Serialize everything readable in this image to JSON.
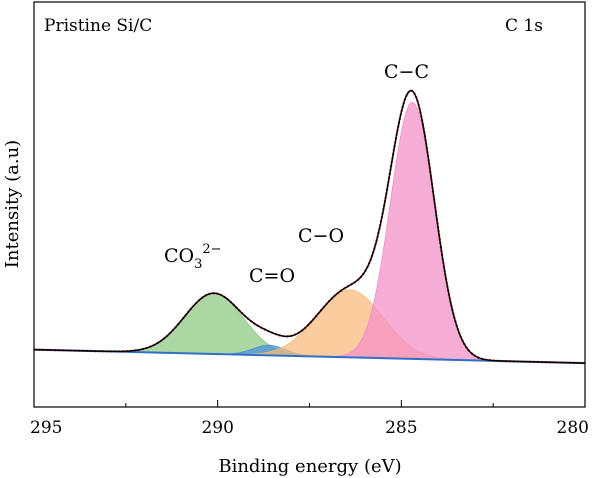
{
  "chart_data": {
    "type": "area",
    "sample_label": "Pristine Si/C",
    "spectrum_label": "C 1s",
    "xlabel": "Binding energy (eV)",
    "ylabel": "Intensity (a.u)",
    "xlim": [
      295,
      280
    ],
    "ylim": [
      -0.15,
      1.05
    ],
    "x_reversed": true,
    "x_ticks": [
      295,
      290,
      285,
      280
    ],
    "x_minor_step": 2.5,
    "grid": false,
    "baseline": {
      "x": [
        295,
        280
      ],
      "y": [
        0.02,
        -0.02
      ]
    },
    "components": [
      {
        "label": "CO",
        "label_sub": "3",
        "label_sup": "2−",
        "center": 290.1,
        "height": 0.18,
        "sigma": 0.8,
        "color": "#8bc87e"
      },
      {
        "label": "C=O",
        "center": 288.6,
        "height": 0.03,
        "sigma": 0.45,
        "color": "#4a90d9"
      },
      {
        "label": "C−O",
        "center": 286.4,
        "height": 0.2,
        "sigma": 0.9,
        "color": "#f8b878"
      },
      {
        "label": "C−C",
        "center": 284.7,
        "height": 0.76,
        "sigma": 0.6,
        "color": "#f38fc8"
      }
    ]
  }
}
